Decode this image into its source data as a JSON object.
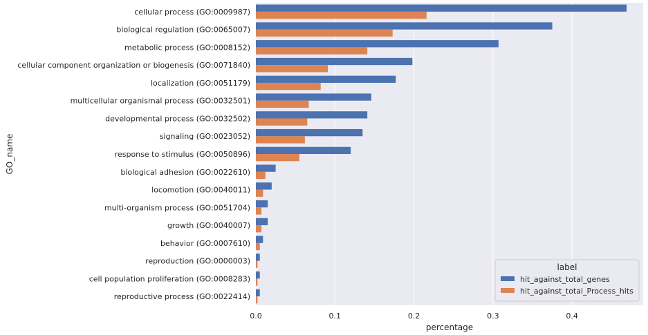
{
  "chart_data": {
    "type": "bar",
    "orientation": "horizontal",
    "title": "",
    "xlabel": "percentage",
    "ylabel": "GO_name",
    "xlim": [
      0,
      0.49
    ],
    "xticks": [
      0.0,
      0.1,
      0.2,
      0.3,
      0.4
    ],
    "xtick_labels": [
      "0.0",
      "0.1",
      "0.2",
      "0.3",
      "0.4"
    ],
    "grid": true,
    "legend": {
      "title": "label",
      "placement": "bottom-right"
    },
    "categories": [
      "cellular process (GO:0009987)",
      "biological regulation (GO:0065007)",
      "metabolic process (GO:0008152)",
      "cellular component organization or biogenesis (GO:0071840)",
      "localization (GO:0051179)",
      "multicellular organismal process (GO:0032501)",
      "developmental process (GO:0032502)",
      "signaling (GO:0023052)",
      "response to stimulus (GO:0050896)",
      "biological adhesion (GO:0022610)",
      "locomotion (GO:0040011)",
      "multi-organism process (GO:0051704)",
      "growth (GO:0040007)",
      "behavior (GO:0007610)",
      "reproduction (GO:0000003)",
      "cell population proliferation (GO:0008283)",
      "reproductive process (GO:0022414)"
    ],
    "series": [
      {
        "name": "hit_against_total_genes",
        "color": "#4c72b0",
        "values": [
          0.469,
          0.375,
          0.307,
          0.198,
          0.177,
          0.146,
          0.141,
          0.135,
          0.12,
          0.025,
          0.02,
          0.015,
          0.015,
          0.009,
          0.005,
          0.005,
          0.005
        ]
      },
      {
        "name": "hit_against_total_Process_hits",
        "color": "#dd8452",
        "values": [
          0.216,
          0.173,
          0.141,
          0.091,
          0.082,
          0.067,
          0.065,
          0.062,
          0.055,
          0.012,
          0.009,
          0.007,
          0.007,
          0.005,
          0.002,
          0.002,
          0.002
        ]
      }
    ]
  }
}
